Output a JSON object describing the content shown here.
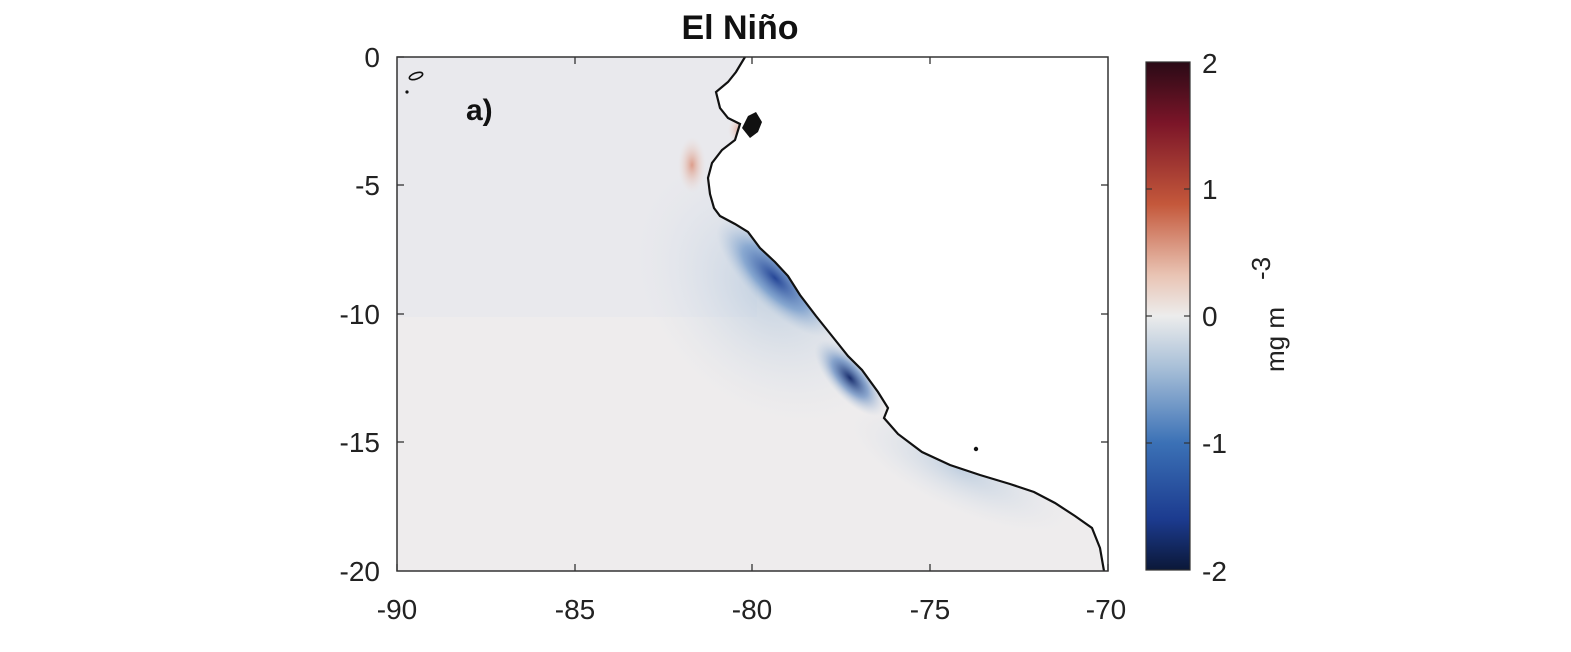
{
  "figure": {
    "title": "El Niño",
    "panel_label": "a)"
  },
  "map": {
    "x_ticks": [
      "-90",
      "-85",
      "-80",
      "-75",
      "-70"
    ],
    "y_ticks": [
      "0",
      "-5",
      "-10",
      "-15",
      "-20"
    ],
    "lon_range": [
      -90,
      -70
    ],
    "lat_range": [
      -20,
      0
    ]
  },
  "colorbar": {
    "ticks": [
      "2",
      "1",
      "0",
      "-1",
      "-2"
    ],
    "range": [
      -2,
      2
    ],
    "unit_main": "mg m",
    "unit_exp": "-3",
    "colors": [
      "#2a0a16",
      "#7b1528",
      "#c4583b",
      "#e9c4b4",
      "#ececec",
      "#a9c0d8",
      "#3b71b6",
      "#1c3b8f",
      "#0b1838"
    ]
  }
}
